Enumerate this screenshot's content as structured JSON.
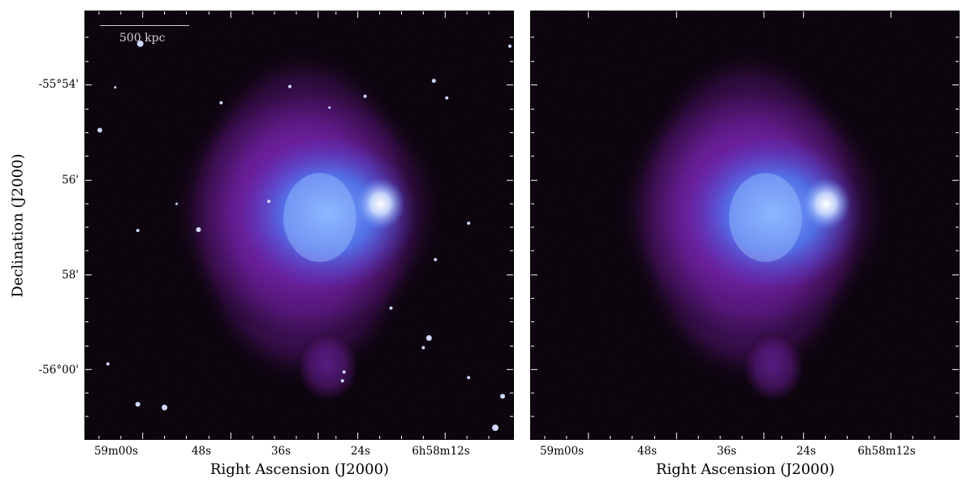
{
  "colors": {
    "background": "#000000",
    "halo": "#7b1fa8",
    "core": "#5c8dff",
    "bright_edge": "#e8f0ff"
  },
  "scalebar": {
    "label": "500 kpc"
  },
  "axes": {
    "xlabel": "Right Ascension (J2000)",
    "ylabel": "Declination (J2000)",
    "x_ticks": [
      "59m00s",
      "48s",
      "36s",
      "24s",
      "6h58m12s"
    ],
    "y_ticks": [
      "-55°54'",
      "56'",
      "58'",
      "-56°00'"
    ]
  },
  "panels": [
    {
      "name": "left",
      "has_point_sources": true,
      "has_scalebar": true
    },
    {
      "name": "right",
      "has_point_sources": false,
      "has_scalebar": false
    }
  ]
}
